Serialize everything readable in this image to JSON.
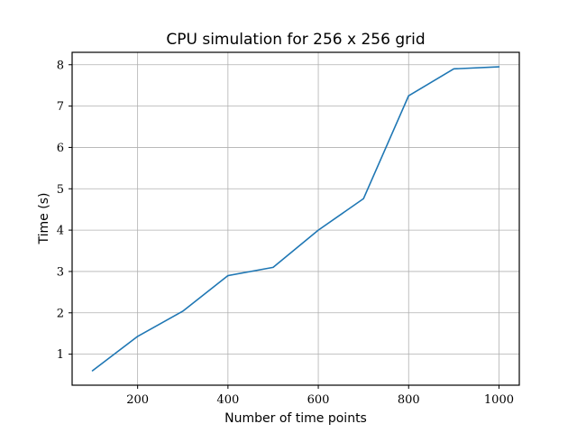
{
  "chart_data": {
    "type": "line",
    "title": "CPU simulation for 256 x 256 grid",
    "xlabel": "Number of time points",
    "ylabel": "Time (s)",
    "xlim": [
      55,
      1045
    ],
    "ylim": [
      0.25,
      8.3
    ],
    "xticks": [
      200,
      400,
      600,
      800,
      1000
    ],
    "yticks": [
      1,
      2,
      3,
      4,
      5,
      6,
      7,
      8
    ],
    "grid": true,
    "series": [
      {
        "color": "#1f77b4",
        "x": [
          100,
          200,
          300,
          400,
          500,
          600,
          700,
          800,
          900,
          1000
        ],
        "y": [
          0.6,
          1.43,
          2.04,
          2.9,
          3.1,
          4.0,
          4.76,
          7.25,
          7.9,
          7.95
        ]
      }
    ]
  }
}
